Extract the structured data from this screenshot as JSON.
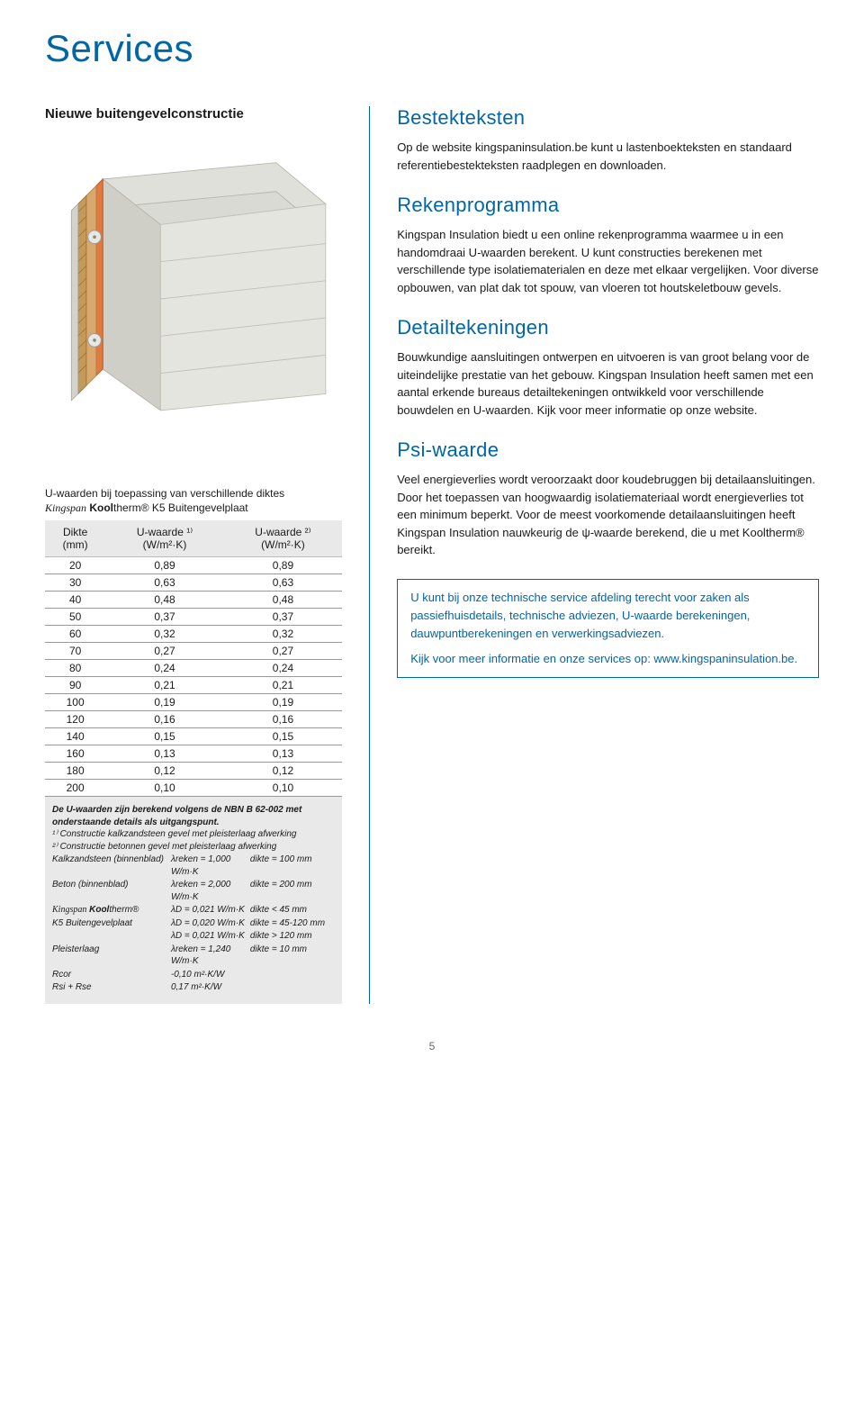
{
  "page": {
    "title": "Services",
    "number": "5"
  },
  "left": {
    "heading": "Nieuwe buitengevelconstructie",
    "diagram": {
      "type": "technical-cutaway",
      "layers": [
        {
          "name": "concrete-block",
          "color": "#d8d8d4"
        },
        {
          "name": "insulation-core",
          "color": "#d9a86e"
        },
        {
          "name": "mesh-layer",
          "color": "#c49a5a"
        },
        {
          "name": "plaster",
          "color": "#cfcfc8"
        }
      ],
      "background": "#ffffff"
    },
    "table": {
      "caption": "U-waarden bij toepassing van verschillende diktes",
      "product_prefix_italic": "Kingspan",
      "product_bold": " Kool",
      "product_small": "therm",
      "product_tail": "® K5 Buitengevelplaat",
      "columns": [
        {
          "h1": "Dikte",
          "h2": "(mm)"
        },
        {
          "h1": "U-waarde ¹⁾",
          "h2": "(W/m²·K)"
        },
        {
          "h1": "U-waarde ²⁾",
          "h2": "(W/m²·K)"
        }
      ],
      "rows": [
        [
          "20",
          "0,89",
          "0,89"
        ],
        [
          "30",
          "0,63",
          "0,63"
        ],
        [
          "40",
          "0,48",
          "0,48"
        ],
        [
          "50",
          "0,37",
          "0,37"
        ],
        [
          "60",
          "0,32",
          "0,32"
        ],
        [
          "70",
          "0,27",
          "0,27"
        ],
        [
          "80",
          "0,24",
          "0,24"
        ],
        [
          "90",
          "0,21",
          "0,21"
        ],
        [
          "100",
          "0,19",
          "0,19"
        ],
        [
          "120",
          "0,16",
          "0,16"
        ],
        [
          "140",
          "0,15",
          "0,15"
        ],
        [
          "160",
          "0,13",
          "0,13"
        ],
        [
          "180",
          "0,12",
          "0,12"
        ],
        [
          "200",
          "0,10",
          "0,10"
        ]
      ],
      "header_bg": "#e9e9e9"
    },
    "footnotes": {
      "title": "De U-waarden zijn berekend volgens de NBN B 62-002 met onderstaande details als uitgangspunt.",
      "l1": "¹⁾ Constructie kalkzandsteen gevel met pleisterlaag afwerking",
      "l2": "²⁾ Constructie betonnen gevel met pleisterlaag afwerking",
      "rows": [
        {
          "c1": "Kalkzandsteen (binnenblad)",
          "c2": "λreken = 1,000 W/m·K",
          "c3": "dikte = 100 mm"
        },
        {
          "c1": "Beton (binnenblad)",
          "c2": "λreken = 2,000 W/m·K",
          "c3": "dikte = 200 mm"
        },
        {
          "c1": "",
          "c2": "λD = 0,021 W/m·K",
          "c3": "dikte < 45 mm"
        },
        {
          "c1": "K5 Buitengevelplaat",
          "c2": "λD = 0,020 W/m·K",
          "c3": "dikte = 45-120 mm"
        },
        {
          "c1": "",
          "c2": "λD = 0,021 W/m·K",
          "c3": "dikte > 120 mm"
        },
        {
          "c1": "Pleisterlaag",
          "c2": "λreken = 1,240 W/m·K",
          "c3": "dikte = 10 mm"
        },
        {
          "c1": "Rcor",
          "c2": "-0,10 m²·K/W",
          "c3": ""
        },
        {
          "c1": "Rsi + Rse",
          "c2": "0,17 m²·K/W",
          "c3": ""
        }
      ],
      "product_prefix_italic": "Kingspan",
      "product_bold": " Kool",
      "product_small": "therm",
      "product_reg": "®"
    }
  },
  "right": {
    "sections": [
      {
        "heading": "Bestekteksten",
        "body": "Op de website kingspaninsulation.be kunt u lastenboekteksten en standaard referentiebestekteksten raadplegen en downloaden."
      },
      {
        "heading": "Rekenprogramma",
        "body": "Kingspan Insulation biedt u een online rekenprogramma waarmee u in een handomdraai U-waarden berekent. U kunt constructies berekenen met verschillende type isolatiematerialen en deze met elkaar vergelijken. Voor diverse opbouwen, van plat dak tot spouw, van vloeren tot houtskeletbouw gevels."
      },
      {
        "heading": "Detailtekeningen",
        "body": "Bouwkundige aansluitingen ontwerpen en uitvoeren is van groot belang voor de uiteindelijke prestatie van het gebouw. Kingspan Insulation heeft samen met een aantal erkende bureaus detailtekeningen ontwikkeld voor verschillende bouwdelen en U-waarden. Kijk voor meer informatie op onze website."
      },
      {
        "heading": "Psi-waarde",
        "body": "Veel energieverlies wordt veroorzaakt door koudebruggen bij detailaansluitingen. Door het toepassen van hoogwaardig isolatiemateriaal wordt energieverlies tot een minimum beperkt. Voor de meest voorkomende detailaansluitingen heeft Kingspan Insulation nauwkeurig de ψ-waarde berekend, die u met Kooltherm® bereikt."
      }
    ],
    "box": {
      "p1": "U kunt bij onze technische service afdeling terecht voor zaken als passiefhuisdetails, technische adviezen, U-waarde berekeningen, dauwpuntberekeningen en verwerkingsadviezen.",
      "p2": "Kijk voor meer informatie en onze services op: www.kingspaninsulation.be."
    }
  }
}
